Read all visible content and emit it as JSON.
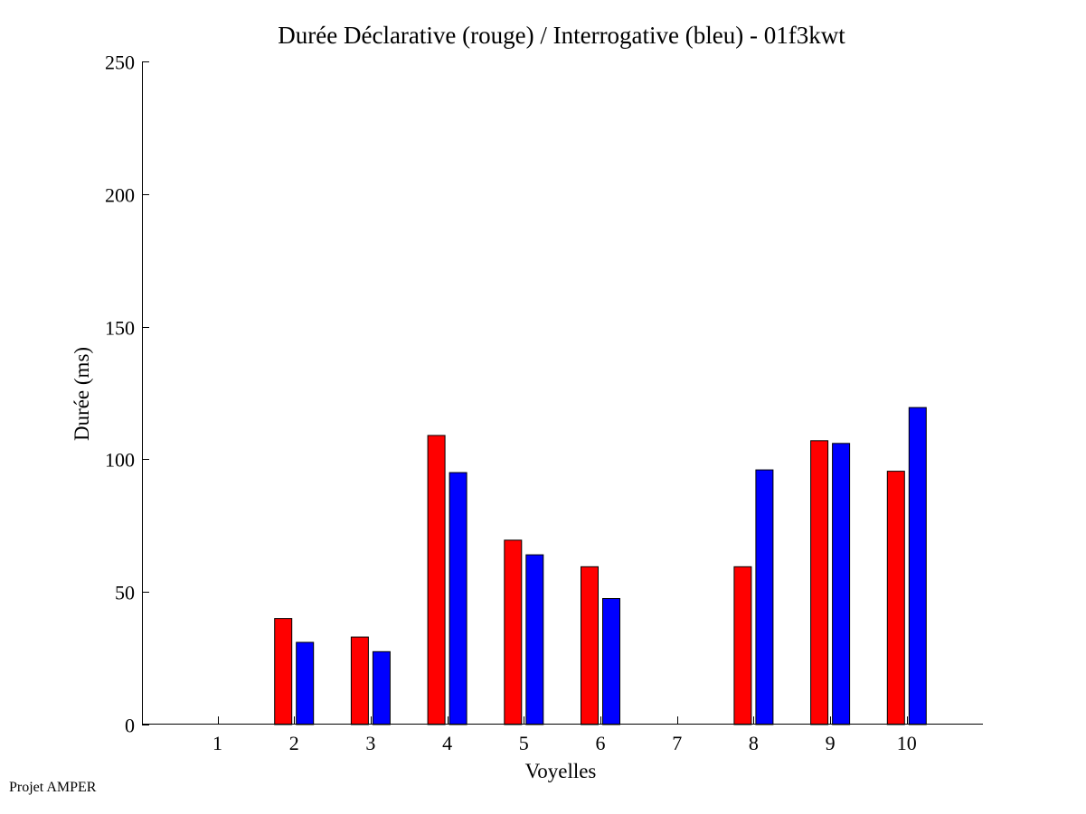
{
  "footer": {
    "text": "Projet AMPER"
  },
  "chart_data": {
    "type": "bar",
    "title": "Durée Déclarative (rouge) / Interrogative (bleu) - 01f3kwt",
    "xlabel": "Voyelles",
    "ylabel": "Durée (ms)",
    "ylim": [
      0,
      250
    ],
    "yticks": [
      0,
      50,
      100,
      150,
      200,
      250
    ],
    "categories": [
      "1",
      "2",
      "3",
      "4",
      "5",
      "6",
      "7",
      "8",
      "9",
      "10"
    ],
    "grid": false,
    "series": [
      {
        "color": "#ff0000",
        "values": [
          0,
          40,
          33,
          109,
          69.5,
          59.5,
          0,
          59.5,
          107,
          95.5
        ]
      },
      {
        "color": "#0000ff",
        "values": [
          0,
          31,
          27.5,
          95,
          64,
          47.5,
          0,
          96,
          106,
          119.5
        ]
      }
    ]
  }
}
